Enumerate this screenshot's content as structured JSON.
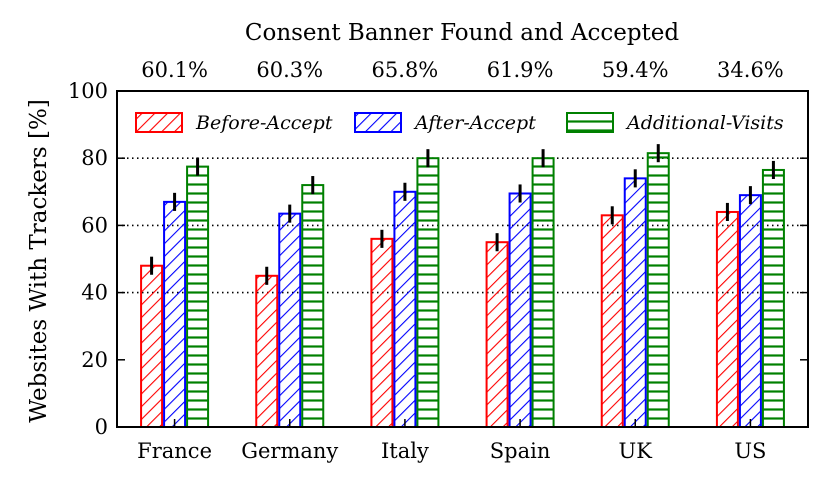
{
  "chart_data": {
    "type": "bar",
    "title": "Consent Banner Found and Accepted",
    "top_labels": [
      "60.1%",
      "60.3%",
      "65.8%",
      "61.9%",
      "59.4%",
      "34.6%"
    ],
    "categories": [
      "France",
      "Germany",
      "Italy",
      "Spain",
      "UK",
      "US"
    ],
    "ylabel": "Websites With Trackers [%]",
    "ylim": [
      0,
      100
    ],
    "yticks": [
      "0",
      "20",
      "40",
      "60",
      "80",
      "100"
    ],
    "grid": "horizontal dotted at 40, 60, 80",
    "legend_position": "top",
    "series": [
      {
        "name": "Before-Accept",
        "color": "#ff0000",
        "pattern": "diagonal-hatch",
        "values": [
          48,
          45,
          56,
          55,
          63,
          64
        ],
        "errors": [
          1.5,
          1.5,
          1.5,
          1.5,
          1.5,
          1.5
        ]
      },
      {
        "name": "After-Accept",
        "color": "#0000ff",
        "pattern": "diagonal-hatch",
        "values": [
          67,
          63.5,
          70,
          69.5,
          74,
          69
        ],
        "errors": [
          1.5,
          1.5,
          1.5,
          1.5,
          1.5,
          1.5
        ]
      },
      {
        "name": "Additional-Visits",
        "color": "#008000",
        "pattern": "horizontal-hatch",
        "values": [
          77.5,
          72,
          80,
          80,
          81.5,
          76.5
        ],
        "errors": [
          1.5,
          1.5,
          1.5,
          1.5,
          1.5,
          1.5
        ]
      }
    ]
  }
}
